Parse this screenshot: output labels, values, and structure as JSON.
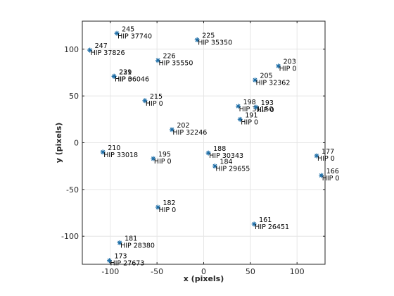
{
  "chart_data": {
    "type": "scatter",
    "title": "",
    "xlabel": "x (pixels)",
    "ylabel": "y (pixels)",
    "xlim": [
      -130,
      130
    ],
    "ylim": [
      -130,
      130
    ],
    "xticks": [
      -100,
      -50,
      0,
      50,
      100
    ],
    "yticks": [
      -100,
      -50,
      0,
      50,
      100
    ],
    "grid": true,
    "marker": "asterisk",
    "marker_color": "#1f6fa8",
    "points": [
      {
        "x": -93,
        "y": 117,
        "id": "245",
        "name": "HIP 37740"
      },
      {
        "x": -122,
        "y": 99,
        "id": "247",
        "name": "HIP 37826"
      },
      {
        "x": -7,
        "y": 110,
        "id": "225",
        "name": "HIP 35350"
      },
      {
        "x": -49,
        "y": 88,
        "id": "226",
        "name": "HIP 35550"
      },
      {
        "x": -96,
        "y": 71,
        "id": "229",
        "name": "HIP 0"
      },
      {
        "x": -96,
        "y": 71,
        "id": "231",
        "name": "HIP 36046"
      },
      {
        "x": 80,
        "y": 82,
        "id": "203",
        "name": "HIP 0"
      },
      {
        "x": 55,
        "y": 67,
        "id": "205",
        "name": "HIP 32362"
      },
      {
        "x": -63,
        "y": 45,
        "id": "215",
        "name": "HIP 0"
      },
      {
        "x": 37,
        "y": 39,
        "id": "198",
        "name": "HIP 31150"
      },
      {
        "x": 56,
        "y": 38,
        "id": "193",
        "name": "HIP 0"
      },
      {
        "x": 39,
        "y": 25,
        "id": "191",
        "name": "HIP 0"
      },
      {
        "x": -34,
        "y": 14,
        "id": "202",
        "name": "HIP 32246"
      },
      {
        "x": -108,
        "y": -10,
        "id": "210",
        "name": "HIP 33018"
      },
      {
        "x": -54,
        "y": -17,
        "id": "195",
        "name": "HIP 0"
      },
      {
        "x": 5,
        "y": -11,
        "id": "188",
        "name": "HIP 30343"
      },
      {
        "x": 12,
        "y": -25,
        "id": "184",
        "name": "HIP 29655"
      },
      {
        "x": 121,
        "y": -14,
        "id": "177",
        "name": "HIP 0"
      },
      {
        "x": 126,
        "y": -35,
        "id": "166",
        "name": "HIP 0"
      },
      {
        "x": -49,
        "y": -69,
        "id": "182",
        "name": "HIP 0"
      },
      {
        "x": 54,
        "y": -87,
        "id": "161",
        "name": "HIP 26451"
      },
      {
        "x": -90,
        "y": -107,
        "id": "181",
        "name": "HIP 28380"
      },
      {
        "x": -101,
        "y": -126,
        "id": "173",
        "name": "HIP 27673"
      }
    ]
  }
}
